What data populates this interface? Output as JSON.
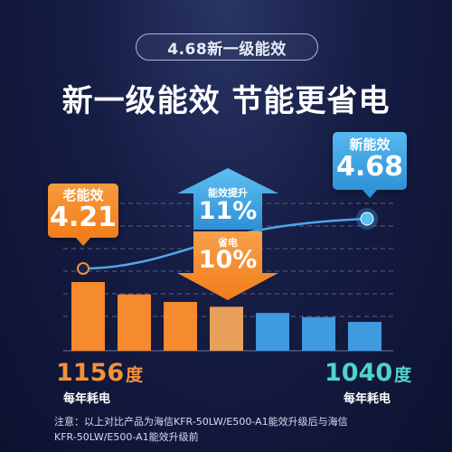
{
  "badge": {
    "text": "4.68新一级能效"
  },
  "headline": {
    "text": "新一级能效 节能更省电"
  },
  "old_callout": {
    "label": "老能效",
    "value": "4.21"
  },
  "new_callout": {
    "label": "新能效",
    "value": "4.68"
  },
  "efficiency_arrow": {
    "label": "能效提升",
    "value": "11%"
  },
  "saving_arrow": {
    "label": "省电",
    "value": "10%"
  },
  "old_consumption": {
    "value": "1156",
    "unit": "度",
    "label": "每年耗电"
  },
  "new_consumption": {
    "value": "1040",
    "unit": "度",
    "label": "每年耗电"
  },
  "note": {
    "line1": "注意：以上对比产品为海信KFR-50LW/E500-A1能效升级后与海信",
    "line2": "KFR-50LW/E500-A1能效升级前"
  },
  "colors": {
    "orange": "#f5913a",
    "blue": "#3e9be0",
    "teal": "#4fd4cd",
    "background": "#161d44"
  },
  "chart_data": {
    "type": "bar",
    "bar_count": 7,
    "bar_colors": [
      "#f58a2e",
      "#f58a2e",
      "#f58a2e",
      "#e9a05a",
      "#3e9be0",
      "#3e9be0",
      "#3e9be0"
    ],
    "relative_heights": [
      1.0,
      0.82,
      0.71,
      0.64,
      0.55,
      0.49,
      0.42
    ],
    "line_start": "4.21",
    "line_end": "4.68"
  }
}
